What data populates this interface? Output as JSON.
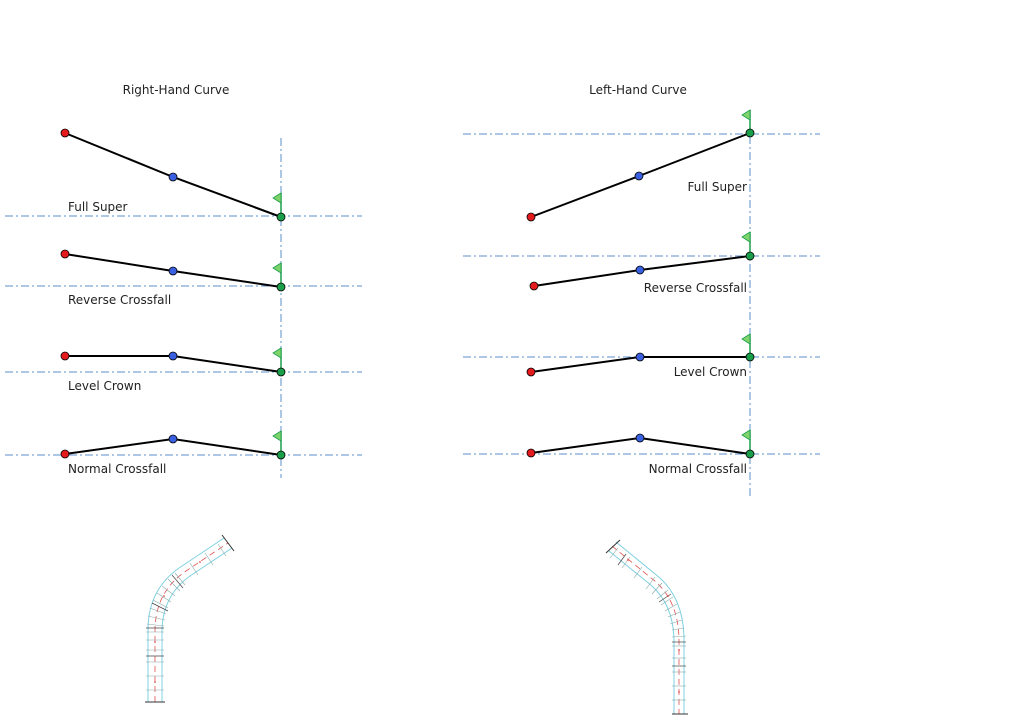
{
  "panels": {
    "right": {
      "title": "Right-Hand Curve",
      "rows": [
        {
          "label": "Full Super"
        },
        {
          "label": "Reverse Crossfall"
        },
        {
          "label": "Level Crown"
        },
        {
          "label": "Normal Crossfall"
        }
      ]
    },
    "left": {
      "title": "Left-Hand Curve",
      "rows": [
        {
          "label": "Full Super"
        },
        {
          "label": "Reverse Crossfall"
        },
        {
          "label": "Level Crown"
        },
        {
          "label": "Normal Crossfall"
        }
      ]
    }
  },
  "colors": {
    "edge_left_point": "#e41a1c",
    "crown_point": "#3a5fe0",
    "pivot_point": "#1a9e4a",
    "flag": "#7fd36b",
    "guide_line": "#5b8fc9",
    "section_line": "#000000",
    "road_outline": "#7fd0e0",
    "road_station": "#e05050"
  },
  "icons": {
    "pivot_marker": "flag-icon",
    "plan_view": "road-plan-icon"
  }
}
